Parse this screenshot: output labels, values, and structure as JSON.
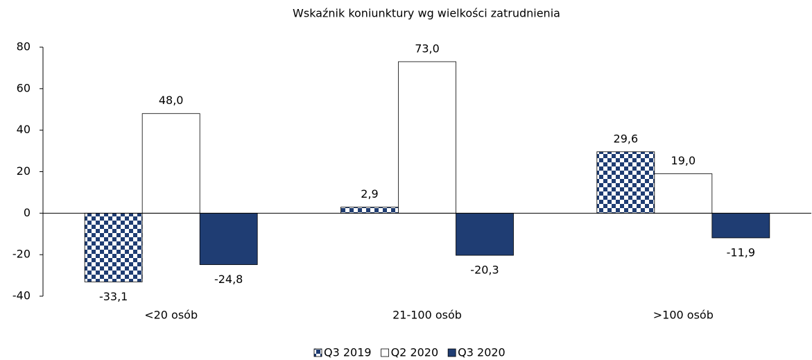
{
  "chart_data": {
    "type": "bar",
    "title": "Wskaźnik koniunktury wg wielkości zatrudnienia",
    "categories": [
      "<20 osób",
      "21-100 osób",
      ">100 osób"
    ],
    "series": [
      {
        "name": "Q3 2019",
        "color": "#1f3d73",
        "pattern": "checker",
        "values": [
          -33.1,
          2.9,
          29.6
        ],
        "value_labels": [
          "-33,1",
          "2,9",
          "29,6"
        ]
      },
      {
        "name": "Q2 2020",
        "color": "#ffffff",
        "values": [
          48.0,
          73.0,
          19.0
        ],
        "value_labels": [
          "48,0",
          "73,0",
          "19,0"
        ]
      },
      {
        "name": "Q3 2020",
        "color": "#1f3d73",
        "values": [
          -24.8,
          -20.3,
          -11.9
        ],
        "value_labels": [
          "-24,8",
          "-20,3",
          "-11,9"
        ]
      }
    ],
    "ylim": [
      -40,
      80
    ],
    "yticks": [
      -40,
      -20,
      0,
      20,
      40,
      60,
      80
    ],
    "grid": false,
    "legend": "bottom"
  }
}
